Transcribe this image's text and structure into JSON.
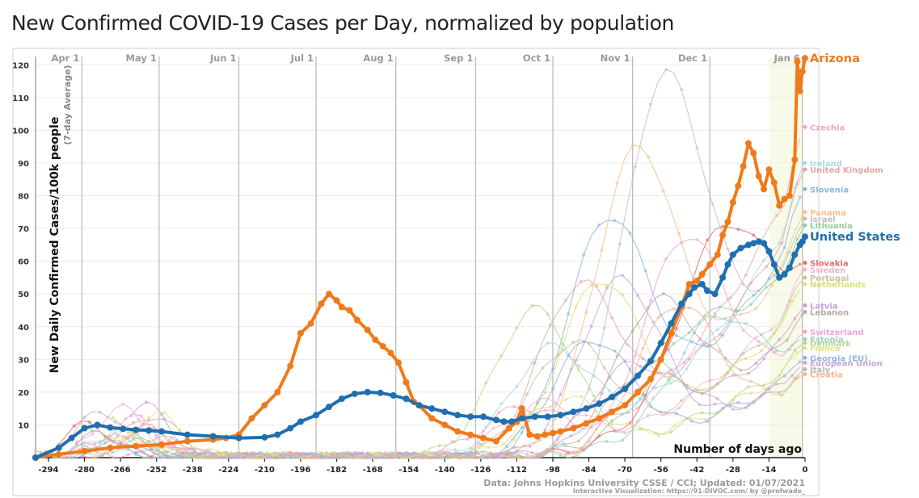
{
  "title": "New Confirmed COVID-19 Cases per Day, normalized by population",
  "chart_data": {
    "type": "line",
    "title": "New Confirmed COVID-19 Cases per Day, normalized by population",
    "ylabel": "New Daily Confirmed Cases/100k people",
    "ylabel_sub": "(7-day Average)",
    "xlabel": "Number of days ago",
    "xlim": [
      -299,
      0
    ],
    "ylim": [
      0,
      125
    ],
    "x_ticks": [
      -294,
      -280,
      -266,
      -252,
      -238,
      -224,
      -210,
      -196,
      -182,
      -168,
      -154,
      -140,
      -126,
      -112,
      -98,
      -84,
      -70,
      -56,
      -42,
      -28,
      -14,
      0
    ],
    "y_ticks": [
      10,
      20,
      30,
      40,
      50,
      60,
      70,
      80,
      90,
      100,
      110,
      120
    ],
    "month_markers": [
      {
        "label": "Apr 1",
        "x": -281
      },
      {
        "label": "May 1",
        "x": -251
      },
      {
        "label": "Jun 1",
        "x": -220
      },
      {
        "label": "Jul 1",
        "x": -190
      },
      {
        "label": "Aug 1",
        "x": -159
      },
      {
        "label": "Sep 1",
        "x": -128
      },
      {
        "label": "Oct 1",
        "x": -98
      },
      {
        "label": "Nov 1",
        "x": -67
      },
      {
        "label": "Dec 1",
        "x": -37
      },
      {
        "label": "Jan 6",
        "x": -1
      }
    ],
    "grid": true,
    "source_text": "Data: Johns Hopkins University CSSE / CCI; Updated: 01/07/2021",
    "credit_text": "Interactive Visualization: https://91-DIVOC.com/ by @profwade_",
    "series": [
      {
        "name": "Arizona",
        "color": "#f07a1a",
        "x": [
          -299,
          -290,
          -280,
          -270,
          -260,
          -250,
          -240,
          -230,
          -225,
          -220,
          -215,
          -210,
          -205,
          -200,
          -196,
          -192,
          -188,
          -185,
          -182,
          -180,
          -177,
          -174,
          -170,
          -167,
          -164,
          -161,
          -158,
          -155,
          -152,
          -150,
          -145,
          -140,
          -135,
          -130,
          -125,
          -120,
          -115,
          -112,
          -110,
          -107,
          -104,
          -101,
          -98,
          -95,
          -90,
          -85,
          -80,
          -75,
          -70,
          -65,
          -60,
          -56,
          -52,
          -48,
          -45,
          -42,
          -40,
          -37,
          -34,
          -32,
          -30,
          -28,
          -26,
          -24,
          -22,
          -20,
          -18,
          -16,
          -14,
          -12,
          -10,
          -8,
          -6,
          -4,
          -3,
          -2,
          -1,
          0
        ],
        "y": [
          0,
          1,
          2,
          3,
          3.5,
          4,
          5,
          5.5,
          6,
          7,
          12,
          16,
          20,
          28,
          38,
          41,
          47,
          50,
          48,
          46,
          45,
          42,
          39,
          36,
          34,
          32,
          29,
          23,
          17,
          16,
          12,
          10,
          8,
          7,
          6,
          5,
          9,
          11,
          15,
          7,
          6.5,
          7,
          7.5,
          8,
          9,
          10.5,
          12,
          14,
          16,
          20,
          24,
          30,
          38,
          46,
          53,
          54,
          56,
          59,
          62,
          68,
          72,
          78,
          83,
          89,
          96,
          93,
          86,
          82,
          88,
          84,
          77,
          79,
          80,
          91,
          121,
          112,
          118,
          122
        ]
      },
      {
        "name": "United States",
        "color": "#1f6fb0",
        "x": [
          -299,
          -290,
          -285,
          -280,
          -275,
          -270,
          -265,
          -260,
          -255,
          -250,
          -240,
          -230,
          -220,
          -210,
          -205,
          -200,
          -196,
          -190,
          -185,
          -180,
          -175,
          -170,
          -165,
          -160,
          -155,
          -150,
          -145,
          -140,
          -135,
          -130,
          -125,
          -120,
          -117,
          -114,
          -110,
          -105,
          -100,
          -95,
          -90,
          -85,
          -80,
          -75,
          -70,
          -65,
          -60,
          -56,
          -52,
          -48,
          -45,
          -43,
          -40,
          -38,
          -35,
          -32,
          -30,
          -28,
          -25,
          -22,
          -20,
          -18,
          -16,
          -14,
          -12,
          -10,
          -8,
          -6,
          -4,
          -2,
          -1,
          0
        ],
        "y": [
          0,
          3,
          6,
          9,
          10,
          9.2,
          8.8,
          8.5,
          8.3,
          8,
          7,
          6.5,
          6,
          6.2,
          7,
          9,
          11,
          13,
          15.5,
          18,
          19.5,
          20,
          19.8,
          19,
          18,
          16,
          15,
          14,
          13,
          12.5,
          12.5,
          11.5,
          11,
          11,
          12,
          12.5,
          12.5,
          13,
          14,
          15,
          16.5,
          18.5,
          21,
          25,
          29.5,
          35,
          41,
          47,
          50,
          52,
          53,
          51,
          50,
          55,
          59,
          62,
          64,
          65,
          65.5,
          66,
          65.5,
          63,
          59,
          55,
          56,
          58,
          62,
          65,
          66,
          67.5
        ]
      }
    ],
    "background_series": [
      {
        "name": "Czechia",
        "color": "#f2a6c9",
        "end": 101
      },
      {
        "name": "Ireland",
        "color": "#a8d8ec",
        "end": 90
      },
      {
        "name": "United Kingdom",
        "color": "#e3a7a7",
        "end": 88
      },
      {
        "name": "Slovenia",
        "color": "#8ab8dd",
        "end": 82
      },
      {
        "name": "Panama",
        "color": "#f6c08c",
        "end": 75
      },
      {
        "name": "Israel",
        "color": "#bfbfbf",
        "end": 73
      },
      {
        "name": "Lithuania",
        "color": "#8fd19a",
        "end": 71
      },
      {
        "name": "Slovakia",
        "color": "#e56b6b",
        "end": 59.5
      },
      {
        "name": "Sweden",
        "color": "#f5b3d4",
        "end": 57.5
      },
      {
        "name": "Portugal",
        "color": "#c9c59c",
        "end": 55
      },
      {
        "name": "Netherlands",
        "color": "#d9e07a",
        "end": 53
      },
      {
        "name": "Latvia",
        "color": "#caa0d6",
        "end": 46.5
      },
      {
        "name": "Lebanon",
        "color": "#b7a9a3",
        "end": 44.5
      },
      {
        "name": "Switzerland",
        "color": "#f1a6d2",
        "end": 38.5
      },
      {
        "name": "Estonia",
        "color": "#9fcfc6",
        "end": 36.2
      },
      {
        "name": "Denmark",
        "color": "#b5d98c",
        "end": 35
      },
      {
        "name": "France",
        "color": "#e7e08a",
        "end": 33.5
      },
      {
        "name": "Georgia (EU)",
        "color": "#8fb4e0",
        "end": 30.5
      },
      {
        "name": "European Union",
        "color": "#c7a5d9",
        "end": 29
      },
      {
        "name": "Italy",
        "color": "#b9b9b9",
        "end": 27
      },
      {
        "name": "Croatia",
        "color": "#f5b78d",
        "end": 25.5
      }
    ]
  }
}
